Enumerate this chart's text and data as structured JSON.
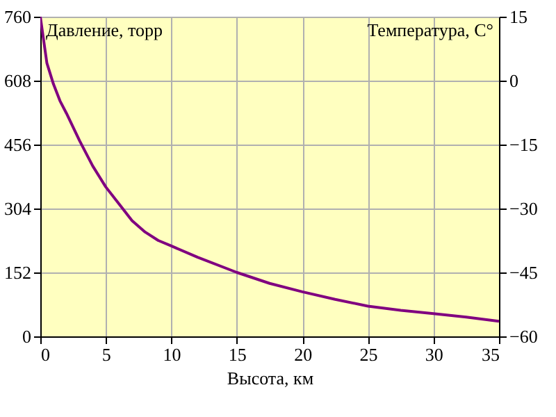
{
  "chart_data": {
    "type": "line",
    "xlabel": "Высота, км",
    "ylabel": "Давление, торр",
    "y2label": "Температура, С°",
    "x": [
      0,
      0.5,
      1,
      1.5,
      2,
      3,
      4,
      5,
      6,
      7,
      8,
      9,
      10,
      12,
      15,
      17.5,
      20,
      22.5,
      25,
      27.5,
      30,
      32.5,
      35
    ],
    "series": [
      {
        "color": "#800080",
        "values": [
          760,
          650,
          600,
          560,
          530,
          465,
          405,
          355,
          315,
          275,
          248,
          228,
          215,
          188,
          152,
          126,
          106,
          88,
          72,
          62,
          54,
          46,
          36
        ]
      }
    ],
    "xlim": [
      0,
      35
    ],
    "xticks": [
      0,
      5,
      10,
      15,
      20,
      25,
      30,
      35
    ],
    "ylim": [
      0,
      760
    ],
    "yticks": [
      0,
      152,
      304,
      456,
      608,
      760
    ],
    "y2lim": [
      -60,
      15
    ],
    "y2ticks": [
      -60,
      -45,
      -30,
      -15,
      0,
      15
    ],
    "grid": true,
    "marker": "none",
    "line_style": "solid"
  }
}
